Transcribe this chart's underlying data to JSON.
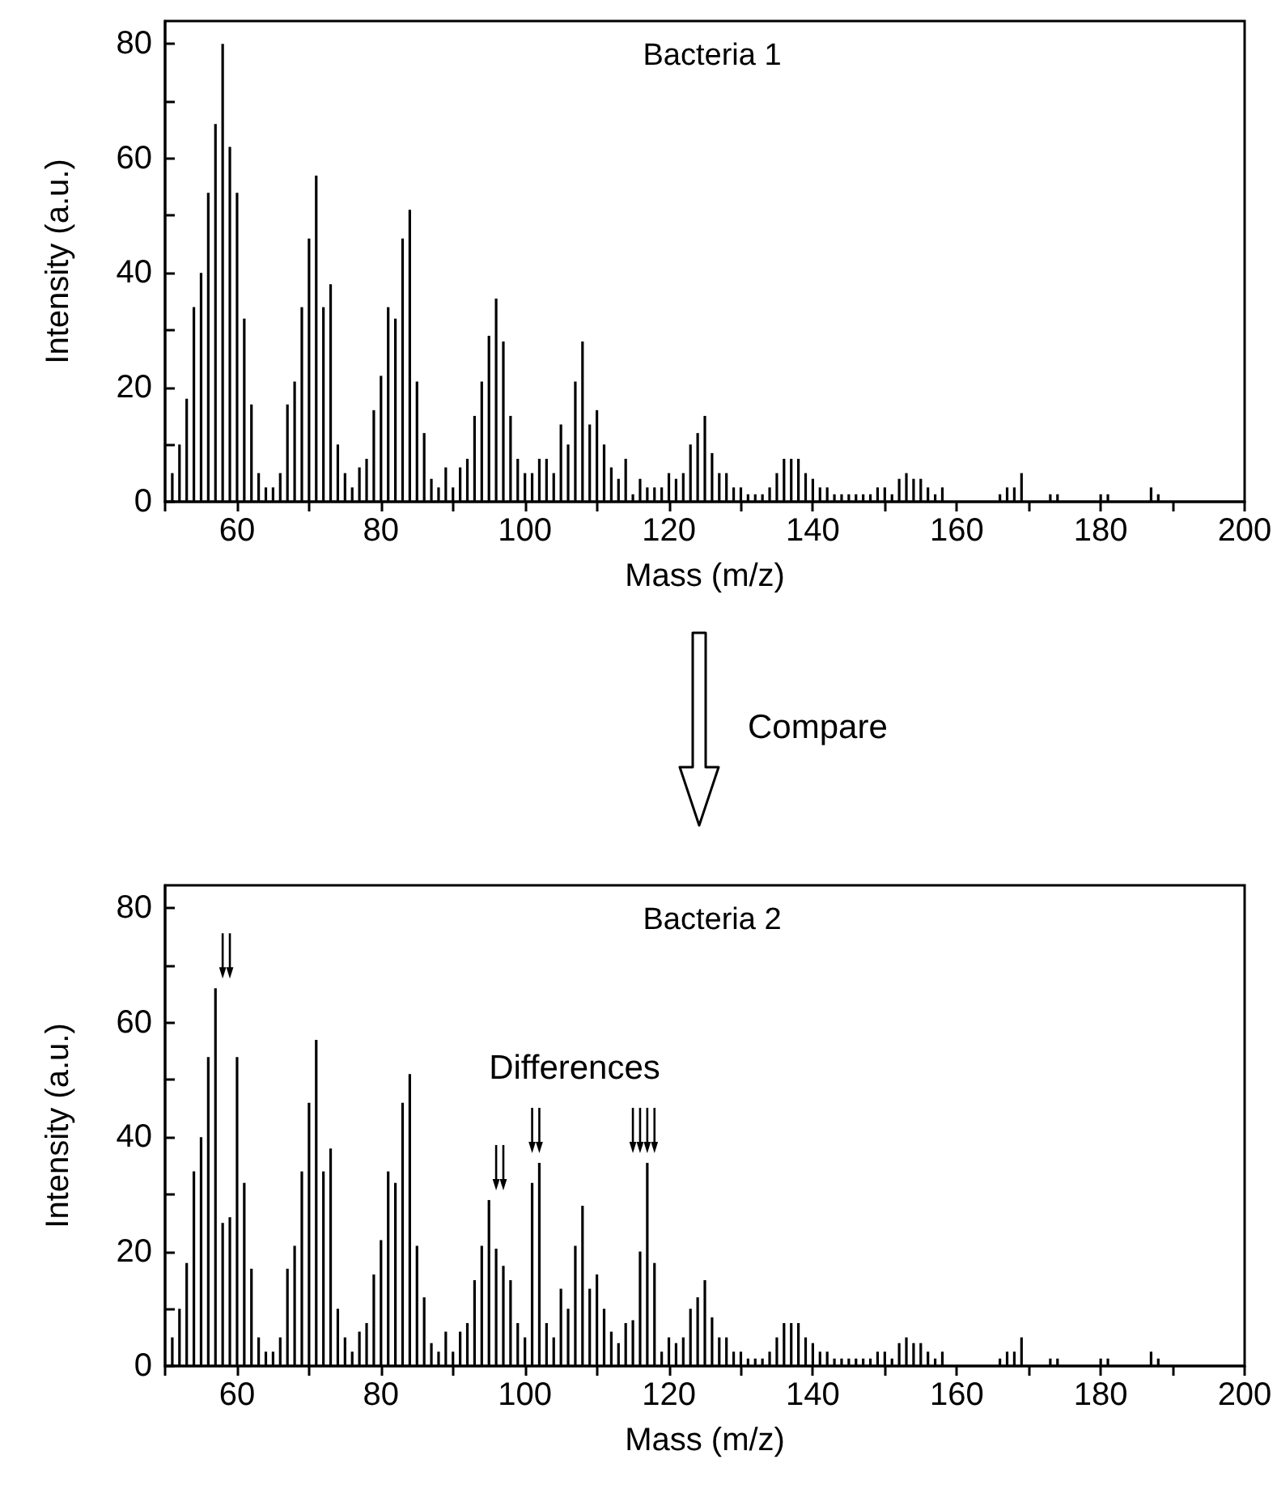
{
  "chart_data": [
    {
      "type": "bar",
      "xlabel": "Mass (m/z)",
      "ylabel": "Intensity (a.u.)",
      "annotations": [
        "Bacteria 1",
        "Compare"
      ],
      "xlim": [
        50,
        200
      ],
      "xticks": [
        {
          "value": 50,
          "label": null
        },
        60,
        {
          "value": 70,
          "label": null
        },
        80,
        {
          "value": 90,
          "label": null
        },
        100,
        {
          "value": 110,
          "label": null
        },
        120,
        {
          "value": 130,
          "label": null
        },
        140,
        {
          "value": 150,
          "label": null
        },
        160,
        {
          "value": 170,
          "label": null
        },
        180,
        {
          "value": 190,
          "label": null
        },
        200
      ],
      "ylim": [
        0,
        84
      ],
      "yticks": [
        0,
        {
          "value": 10,
          "label": null
        },
        20,
        {
          "value": 30,
          "label": null
        },
        40,
        {
          "value": 50,
          "label": null
        },
        60,
        {
          "value": 70,
          "label": null
        },
        80
      ],
      "color": "#000000",
      "x": [
        51,
        52,
        53,
        54,
        55,
        56,
        57,
        58,
        59,
        60,
        61,
        62,
        63,
        64,
        65,
        66,
        67,
        68,
        69,
        70,
        71,
        72,
        73,
        74,
        75,
        76,
        77,
        78,
        79,
        80,
        81,
        82,
        83,
        84,
        85,
        86,
        87,
        88,
        89,
        90,
        91,
        92,
        93,
        94,
        95,
        96,
        97,
        98,
        99,
        100,
        101,
        102,
        103,
        104,
        105,
        106,
        107,
        108,
        109,
        110,
        111,
        112,
        113,
        114,
        115,
        116,
        117,
        118,
        119,
        120,
        121,
        122,
        123,
        124,
        125,
        126,
        127,
        128,
        129,
        130,
        131,
        132,
        133,
        134,
        135,
        136,
        137,
        138,
        139,
        140,
        141,
        142,
        143,
        144,
        145,
        146,
        147,
        148,
        149,
        150,
        151,
        152,
        153,
        154,
        155,
        156,
        157,
        158,
        166,
        167,
        168,
        169,
        173,
        174,
        180,
        181,
        187,
        188
      ],
      "values": [
        5,
        10,
        18,
        34,
        40,
        54,
        66,
        80,
        62,
        54,
        32,
        17,
        5,
        2.5,
        2.5,
        5,
        17,
        21,
        34,
        46,
        57,
        34,
        38,
        10,
        5,
        2.5,
        6,
        7.5,
        16,
        22,
        34,
        32,
        46,
        51,
        21,
        12,
        4,
        2.5,
        6,
        2.5,
        6,
        7.5,
        15,
        21,
        29,
        35.5,
        28,
        15,
        7.5,
        5,
        5,
        7.5,
        7.5,
        5,
        13.5,
        10,
        21,
        28,
        13.5,
        16,
        10,
        6,
        4,
        7.5,
        1.3,
        4,
        2.5,
        2.5,
        2.5,
        5,
        4,
        5,
        10,
        12,
        15,
        8.5,
        5,
        5,
        2.5,
        2.5,
        1.3,
        1.3,
        1.3,
        2.5,
        5,
        7.5,
        7.5,
        7.5,
        5,
        4,
        2.5,
        2.5,
        1.3,
        1.3,
        1.3,
        1.3,
        1.3,
        1.3,
        2.5,
        2.5,
        1.3,
        4,
        5,
        4,
        4,
        2.5,
        1.3,
        2.5,
        1.3,
        2.5,
        2.5,
        5,
        1.3,
        1.3,
        1.3,
        1.3,
        2.5,
        1.3
      ]
    },
    {
      "type": "bar",
      "xlabel": "Mass (m/z)",
      "ylabel": "Intensity (a.u.)",
      "annotations": [
        "Bacteria 2",
        "Differences"
      ],
      "xlim": [
        50,
        200
      ],
      "xticks": [
        {
          "value": 50,
          "label": null
        },
        60,
        {
          "value": 70,
          "label": null
        },
        80,
        {
          "value": 90,
          "label": null
        },
        100,
        {
          "value": 110,
          "label": null
        },
        120,
        {
          "value": 130,
          "label": null
        },
        140,
        {
          "value": 150,
          "label": null
        },
        160,
        {
          "value": 170,
          "label": null
        },
        180,
        {
          "value": 190,
          "label": null
        },
        200
      ],
      "ylim": [
        0,
        84
      ],
      "yticks": [
        0,
        {
          "value": 10,
          "label": null
        },
        20,
        {
          "value": 30,
          "label": null
        },
        40,
        {
          "value": 50,
          "label": null
        },
        60,
        {
          "value": 70,
          "label": null
        },
        80
      ],
      "color": "#000000",
      "x": [
        51,
        52,
        53,
        54,
        55,
        56,
        57,
        58,
        59,
        60,
        61,
        62,
        63,
        64,
        65,
        66,
        67,
        68,
        69,
        70,
        71,
        72,
        73,
        74,
        75,
        76,
        77,
        78,
        79,
        80,
        81,
        82,
        83,
        84,
        85,
        86,
        87,
        88,
        89,
        90,
        91,
        92,
        93,
        94,
        95,
        96,
        97,
        98,
        99,
        100,
        101,
        102,
        103,
        104,
        105,
        106,
        107,
        108,
        109,
        110,
        111,
        112,
        113,
        114,
        115,
        116,
        117,
        118,
        119,
        120,
        121,
        122,
        123,
        124,
        125,
        126,
        127,
        128,
        129,
        130,
        131,
        132,
        133,
        134,
        135,
        136,
        137,
        138,
        139,
        140,
        141,
        142,
        143,
        144,
        145,
        146,
        147,
        148,
        149,
        150,
        151,
        152,
        153,
        154,
        155,
        156,
        157,
        158,
        166,
        167,
        168,
        169,
        173,
        174,
        180,
        181,
        187,
        188
      ],
      "values": [
        5,
        10,
        18,
        34,
        40,
        54,
        66,
        25,
        26,
        54,
        32,
        17,
        5,
        2.5,
        2.5,
        5,
        17,
        21,
        34,
        46,
        57,
        34,
        38,
        10,
        5,
        2.5,
        6,
        7.5,
        16,
        22,
        34,
        32,
        46,
        51,
        21,
        12,
        4,
        2.5,
        6,
        2.5,
        6,
        7.5,
        15,
        21,
        29,
        20.5,
        17.5,
        15,
        7.5,
        5,
        32,
        35.5,
        7.5,
        5,
        13.5,
        10,
        21,
        28,
        13.5,
        16,
        10,
        6,
        4,
        7.5,
        8,
        20,
        35.5,
        18,
        2.5,
        5,
        4,
        5,
        10,
        12,
        15,
        8.5,
        5,
        5,
        2.5,
        2.5,
        1.3,
        1.3,
        1.3,
        2.5,
        5,
        7.5,
        7.5,
        7.5,
        5,
        4,
        2.5,
        2.5,
        1.3,
        1.3,
        1.3,
        1.3,
        1.3,
        1.3,
        2.5,
        2.5,
        1.3,
        4,
        5,
        4,
        4,
        2.5,
        1.3,
        2.5,
        1.3,
        2.5,
        2.5,
        5,
        1.3,
        1.3,
        1.3,
        1.3,
        2.5,
        1.3
      ]
    }
  ]
}
